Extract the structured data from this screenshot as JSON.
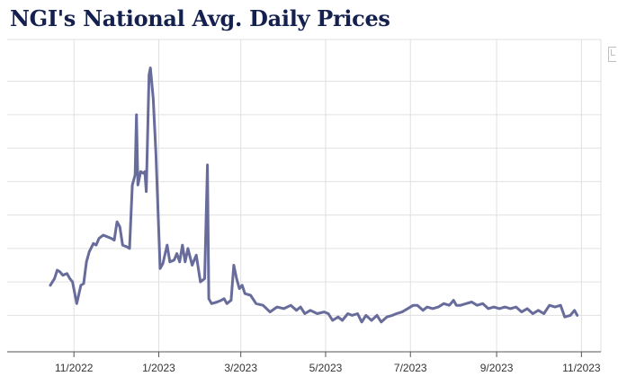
{
  "title": "NGI's National Avg. Daily Prices",
  "colors": {
    "line": "#686c9b",
    "grid": "#e0e0e0",
    "title": "#14204e"
  },
  "icons": {
    "corner": "expand-icon"
  },
  "chart_data": {
    "type": "line",
    "title": "NGI's National Avg. Daily Prices",
    "xlabel": "",
    "ylabel": "",
    "grid": true,
    "x_tick_labels": [
      "11/2022",
      "1/2023",
      "3/2023",
      "5/2023",
      "7/2023",
      "9/2023",
      "11/2023"
    ],
    "x_range": [
      "2022-09-14",
      "2023-11-15"
    ],
    "y_range": [
      -0.5,
      7.5
    ],
    "y_tick_labels": [],
    "series": [
      {
        "points": [
          [
            "2022-10-15",
            0.9
          ],
          [
            "2022-10-18",
            1.1
          ],
          [
            "2022-10-20",
            1.35
          ],
          [
            "2022-10-22",
            1.3
          ],
          [
            "2022-10-24",
            1.2
          ],
          [
            "2022-10-27",
            1.25
          ],
          [
            "2022-10-29",
            1.1
          ],
          [
            "2022-10-31",
            1.0
          ],
          [
            "2022-11-03",
            0.35
          ],
          [
            "2022-11-06",
            0.9
          ],
          [
            "2022-11-08",
            0.95
          ],
          [
            "2022-11-10",
            1.6
          ],
          [
            "2022-11-12",
            1.9
          ],
          [
            "2022-11-15",
            2.15
          ],
          [
            "2022-11-17",
            2.1
          ],
          [
            "2022-11-19",
            2.3
          ],
          [
            "2022-11-22",
            2.4
          ],
          [
            "2022-11-25",
            2.35
          ],
          [
            "2022-11-28",
            2.3
          ],
          [
            "2022-11-30",
            2.25
          ],
          [
            "2022-12-02",
            2.8
          ],
          [
            "2022-12-04",
            2.65
          ],
          [
            "2022-12-06",
            2.1
          ],
          [
            "2022-12-09",
            2.05
          ],
          [
            "2022-12-11",
            2.0
          ],
          [
            "2022-12-13",
            3.9
          ],
          [
            "2022-12-15",
            4.2
          ],
          [
            "2022-12-16",
            6.0
          ],
          [
            "2022-12-17",
            3.9
          ],
          [
            "2022-12-19",
            4.3
          ],
          [
            "2022-12-21",
            4.25
          ],
          [
            "2022-12-22",
            4.3
          ],
          [
            "2022-12-23",
            3.7
          ],
          [
            "2022-12-25",
            7.2
          ],
          [
            "2022-12-26",
            7.4
          ],
          [
            "2022-12-28",
            6.5
          ],
          [
            "2022-12-30",
            4.8
          ],
          [
            "2023-01-02",
            1.4
          ],
          [
            "2023-01-04",
            1.55
          ],
          [
            "2023-01-07",
            2.1
          ],
          [
            "2023-01-09",
            1.6
          ],
          [
            "2023-01-12",
            1.65
          ],
          [
            "2023-01-14",
            1.85
          ],
          [
            "2023-01-16",
            1.6
          ],
          [
            "2023-01-18",
            2.1
          ],
          [
            "2023-01-20",
            1.6
          ],
          [
            "2023-01-22",
            2.0
          ],
          [
            "2023-01-25",
            1.5
          ],
          [
            "2023-01-28",
            1.8
          ],
          [
            "2023-01-31",
            1.0
          ],
          [
            "2023-02-03",
            1.1
          ],
          [
            "2023-02-05",
            4.5
          ],
          [
            "2023-02-06",
            0.5
          ],
          [
            "2023-02-08",
            0.35
          ],
          [
            "2023-02-12",
            0.4
          ],
          [
            "2023-02-15",
            0.45
          ],
          [
            "2023-02-17",
            0.5
          ],
          [
            "2023-02-19",
            0.35
          ],
          [
            "2023-02-22",
            0.45
          ],
          [
            "2023-02-24",
            1.5
          ],
          [
            "2023-02-26",
            1.1
          ],
          [
            "2023-02-28",
            0.8
          ],
          [
            "2023-03-02",
            0.9
          ],
          [
            "2023-03-04",
            0.65
          ],
          [
            "2023-03-08",
            0.6
          ],
          [
            "2023-03-12",
            0.35
          ],
          [
            "2023-03-17",
            0.3
          ],
          [
            "2023-03-22",
            0.1
          ],
          [
            "2023-03-27",
            0.25
          ],
          [
            "2023-04-01",
            0.2
          ],
          [
            "2023-04-06",
            0.3
          ],
          [
            "2023-04-10",
            0.15
          ],
          [
            "2023-04-13",
            0.25
          ],
          [
            "2023-04-16",
            0.05
          ],
          [
            "2023-04-20",
            0.15
          ],
          [
            "2023-04-25",
            0.05
          ],
          [
            "2023-04-30",
            0.1
          ],
          [
            "2023-05-03",
            0.05
          ],
          [
            "2023-05-06",
            -0.15
          ],
          [
            "2023-05-10",
            -0.05
          ],
          [
            "2023-05-13",
            -0.15
          ],
          [
            "2023-05-17",
            0.05
          ],
          [
            "2023-05-20",
            0.0
          ],
          [
            "2023-05-24",
            0.05
          ],
          [
            "2023-05-27",
            -0.2
          ],
          [
            "2023-05-30",
            0.0
          ],
          [
            "2023-06-03",
            -0.15
          ],
          [
            "2023-06-07",
            0.0
          ],
          [
            "2023-06-10",
            -0.2
          ],
          [
            "2023-06-14",
            -0.05
          ],
          [
            "2023-06-18",
            0.0
          ],
          [
            "2023-06-21",
            0.05
          ],
          [
            "2023-06-25",
            0.1
          ],
          [
            "2023-06-29",
            0.2
          ],
          [
            "2023-07-03",
            0.3
          ],
          [
            "2023-07-06",
            0.3
          ],
          [
            "2023-07-10",
            0.15
          ],
          [
            "2023-07-13",
            0.25
          ],
          [
            "2023-07-17",
            0.2
          ],
          [
            "2023-07-21",
            0.25
          ],
          [
            "2023-07-25",
            0.35
          ],
          [
            "2023-07-29",
            0.3
          ],
          [
            "2023-08-01",
            0.45
          ],
          [
            "2023-08-03",
            0.3
          ],
          [
            "2023-08-06",
            0.3
          ],
          [
            "2023-08-10",
            0.35
          ],
          [
            "2023-08-14",
            0.4
          ],
          [
            "2023-08-18",
            0.3
          ],
          [
            "2023-08-22",
            0.35
          ],
          [
            "2023-08-26",
            0.2
          ],
          [
            "2023-08-30",
            0.25
          ],
          [
            "2023-09-03",
            0.2
          ],
          [
            "2023-09-07",
            0.25
          ],
          [
            "2023-09-11",
            0.2
          ],
          [
            "2023-09-15",
            0.25
          ],
          [
            "2023-09-19",
            0.1
          ],
          [
            "2023-09-23",
            0.2
          ],
          [
            "2023-09-27",
            0.05
          ],
          [
            "2023-10-01",
            0.15
          ],
          [
            "2023-10-05",
            0.05
          ],
          [
            "2023-10-09",
            0.3
          ],
          [
            "2023-10-13",
            0.25
          ],
          [
            "2023-10-17",
            0.3
          ],
          [
            "2023-10-20",
            -0.05
          ],
          [
            "2023-10-24",
            0.0
          ],
          [
            "2023-10-27",
            0.15
          ],
          [
            "2023-10-29",
            0.0
          ]
        ]
      }
    ]
  }
}
